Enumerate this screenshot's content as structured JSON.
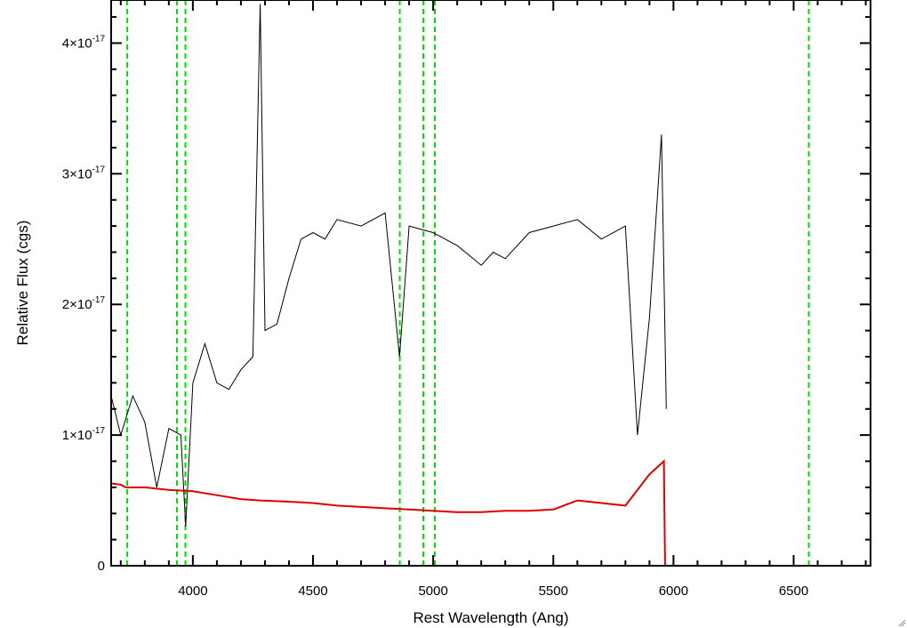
{
  "chart_data": {
    "type": "line",
    "xlabel": "Rest Wavelength (Ang)",
    "ylabel": "Relative Flux (cgs)",
    "xlim": [
      3660,
      6820
    ],
    "ylim": [
      0,
      4.33e-17
    ],
    "x_ticks": [
      4000,
      4500,
      5000,
      5500,
      6000,
      6500
    ],
    "x_tick_labels": [
      "4000",
      "4500",
      "5000",
      "5500",
      "6000",
      "6500"
    ],
    "y_ticks": [
      {
        "value": 0,
        "mantissa": "0",
        "exponent": ""
      },
      {
        "value": 1e-17,
        "mantissa": "1×10",
        "exponent": "-17"
      },
      {
        "value": 2e-17,
        "mantissa": "2×10",
        "exponent": "-17"
      },
      {
        "value": 3e-17,
        "mantissa": "3×10",
        "exponent": "-17"
      },
      {
        "value": 4e-17,
        "mantissa": "4×10",
        "exponent": "-17"
      }
    ],
    "reference_lines": [
      3727,
      3934,
      3969,
      4861,
      4959,
      5007,
      6563
    ],
    "series": [
      {
        "color": "#000000",
        "points": [
          [
            3660,
            1.3e-17
          ],
          [
            3700,
            1e-17
          ],
          [
            3750,
            1.3e-17
          ],
          [
            3800,
            1.1e-17
          ],
          [
            3850,
            6e-18
          ],
          [
            3900,
            1.05e-17
          ],
          [
            3950,
            1e-17
          ],
          [
            3970,
            3e-18
          ],
          [
            4000,
            1.4e-17
          ],
          [
            4050,
            1.7e-17
          ],
          [
            4100,
            1.4e-17
          ],
          [
            4150,
            1.35e-17
          ],
          [
            4200,
            1.5e-17
          ],
          [
            4250,
            1.6e-17
          ],
          [
            4280,
            4.3e-17
          ],
          [
            4300,
            1.8e-17
          ],
          [
            4350,
            1.85e-17
          ],
          [
            4400,
            2.2e-17
          ],
          [
            4450,
            2.5e-17
          ],
          [
            4500,
            2.55e-17
          ],
          [
            4550,
            2.5e-17
          ],
          [
            4600,
            2.65e-17
          ],
          [
            4700,
            2.6e-17
          ],
          [
            4800,
            2.7e-17
          ],
          [
            4860,
            1.6e-17
          ],
          [
            4900,
            2.6e-17
          ],
          [
            5000,
            2.55e-17
          ],
          [
            5100,
            2.45e-17
          ],
          [
            5200,
            2.3e-17
          ],
          [
            5250,
            2.4e-17
          ],
          [
            5300,
            2.35e-17
          ],
          [
            5400,
            2.55e-17
          ],
          [
            5500,
            2.6e-17
          ],
          [
            5600,
            2.65e-17
          ],
          [
            5700,
            2.5e-17
          ],
          [
            5800,
            2.6e-17
          ],
          [
            5850,
            1e-17
          ],
          [
            5900,
            1.9e-17
          ],
          [
            5950,
            3.3e-17
          ],
          [
            5970,
            1.2e-17
          ]
        ]
      },
      {
        "color": "#e00000",
        "points": [
          [
            3660,
            6.3e-18
          ],
          [
            3700,
            6.2e-18
          ],
          [
            3720,
            6e-18
          ],
          [
            3800,
            6e-18
          ],
          [
            3900,
            5.8e-18
          ],
          [
            4000,
            5.7e-18
          ],
          [
            4100,
            5.4e-18
          ],
          [
            4200,
            5.1e-18
          ],
          [
            4280,
            5e-18
          ],
          [
            4400,
            4.9e-18
          ],
          [
            4500,
            4.8e-18
          ],
          [
            4600,
            4.6e-18
          ],
          [
            4700,
            4.5e-18
          ],
          [
            4800,
            4.4e-18
          ],
          [
            4900,
            4.3e-18
          ],
          [
            5000,
            4.2e-18
          ],
          [
            5100,
            4.1e-18
          ],
          [
            5200,
            4.1e-18
          ],
          [
            5300,
            4.2e-18
          ],
          [
            5400,
            4.2e-18
          ],
          [
            5500,
            4.3e-18
          ],
          [
            5600,
            5e-18
          ],
          [
            5700,
            4.8e-18
          ],
          [
            5800,
            4.6e-18
          ],
          [
            5900,
            7e-18
          ],
          [
            5960,
            8e-18
          ],
          [
            5965,
            0.0
          ],
          [
            6820,
            0.0
          ]
        ]
      }
    ]
  }
}
